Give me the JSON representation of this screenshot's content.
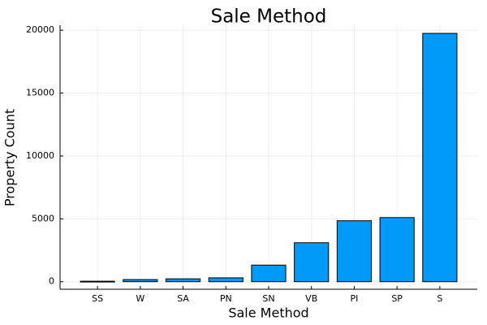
{
  "chart_data": {
    "type": "bar",
    "title": "Sale Method",
    "xlabel": "Sale Method",
    "ylabel": "Property Count",
    "categories": [
      "SS",
      "W",
      "SA",
      "PN",
      "SN",
      "VB",
      "PI",
      "SP",
      "S"
    ],
    "values": [
      40,
      170,
      230,
      310,
      1320,
      3100,
      4850,
      5100,
      19750
    ],
    "yticks": [
      0,
      5000,
      10000,
      15000,
      20000
    ],
    "ylim": [
      -600,
      20400
    ],
    "grid": true,
    "legend": "none",
    "bar_color": "#009AF9"
  }
}
